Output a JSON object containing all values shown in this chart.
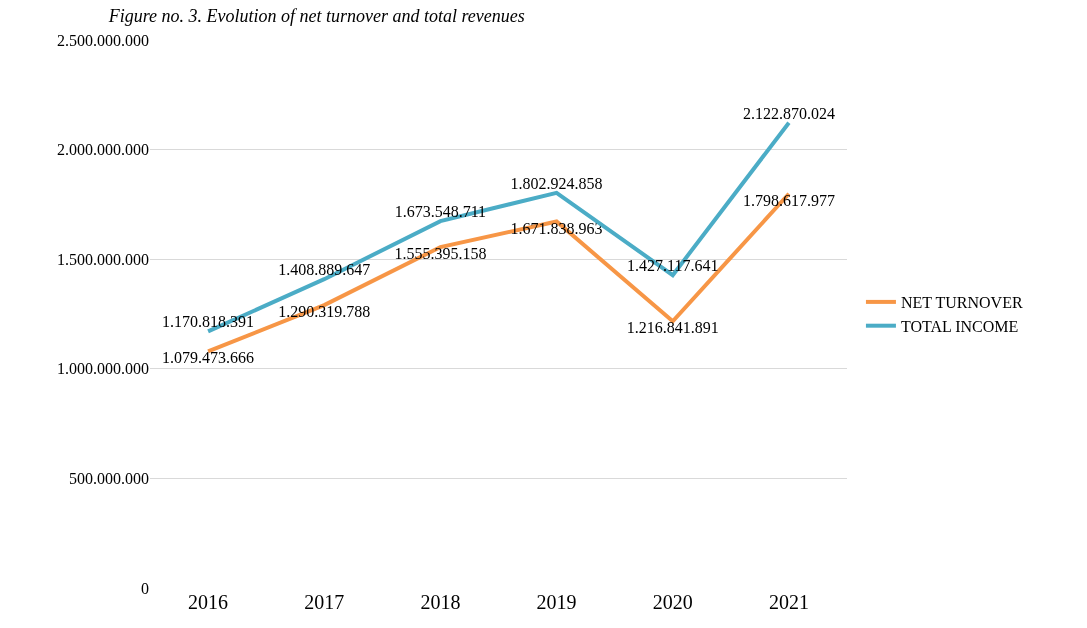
{
  "chart_data": {
    "type": "line",
    "title": "Figure no. 3. Evolution of net turnover and total revenues",
    "categories": [
      "2016",
      "2017",
      "2018",
      "2019",
      "2020",
      "2021"
    ],
    "series": [
      {
        "name": "NET TURNOVER",
        "color": "#f79646",
        "values": [
          1079473666,
          1290319788,
          1555395158,
          1671838963,
          1216841891,
          1798617977
        ],
        "value_labels": [
          "1.079.473.666",
          "1.290.319.788",
          "1.555.395.158",
          "1.671.838.963",
          "1.216.841.891",
          "1.798.617.977"
        ]
      },
      {
        "name": "TOTAL INCOME",
        "color": "#4bacc6",
        "values": [
          1170818391,
          1408889647,
          1673548711,
          1802924858,
          1427117641,
          2122870024
        ],
        "value_labels": [
          "1.170.818.391",
          "1.408.889.647",
          "1.673.548.711",
          "1.802.924.858",
          "1.427.117.641",
          "2.122.870.024"
        ]
      }
    ],
    "ylim": [
      0,
      2500000000
    ],
    "yticks": [
      0,
      {
        "value": 500000000,
        "label": "500.000.000"
      },
      {
        "value": 1000000000,
        "label": "1.000.000.000"
      },
      {
        "value": 1500000000,
        "label": "1.500.000.000"
      },
      {
        "value": 2000000000,
        "label": "2.000.000.000"
      },
      {
        "value": 2500000000,
        "label": "2.500.000.000"
      }
    ],
    "grid": "y",
    "legend": "right",
    "marker": "none",
    "line_style": "solid"
  }
}
